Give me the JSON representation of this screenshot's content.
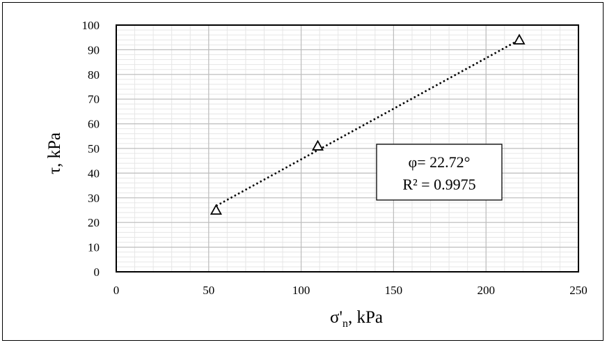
{
  "chart_data": {
    "type": "scatter",
    "title": "",
    "xlabel": "σ'",
    "xlabel_subscript": "n",
    "xlabel_unit": ", kPa",
    "ylabel": "τ, kPa",
    "xlim": [
      0,
      250
    ],
    "ylim": [
      0,
      100
    ],
    "x_ticks": [
      0,
      50,
      100,
      150,
      200,
      250
    ],
    "y_ticks": [
      0,
      10,
      20,
      30,
      40,
      50,
      60,
      70,
      80,
      90,
      100
    ],
    "grid": true,
    "minor_grid": true,
    "series": [
      {
        "marker": "triangle-open",
        "points": [
          {
            "x": 54,
            "y": 25
          },
          {
            "x": 109,
            "y": 51
          },
          {
            "x": 218,
            "y": 94
          }
        ]
      }
    ],
    "trendline": {
      "style": "dotted",
      "start": {
        "x": 54,
        "y": 26.7
      },
      "end": {
        "x": 218,
        "y": 94
      }
    },
    "annotation": {
      "line1": "φ= 22.72°",
      "line2": "R² = 0.9975"
    }
  }
}
